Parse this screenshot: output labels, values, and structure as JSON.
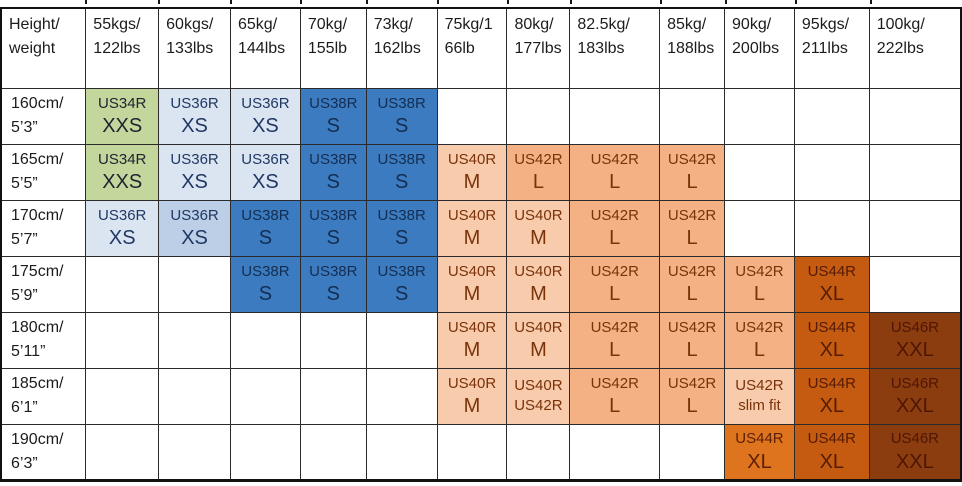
{
  "colors": {
    "grid": "#2b2b2b",
    "outer_border": "#111111",
    "fills": {
      "xxs": {
        "bg": "#c3d69b",
        "fg": "#1b2430"
      },
      "xs": {
        "bg": "#dbe5f1",
        "fg": "#1f3864"
      },
      "xs2": {
        "bg": "#bccfe7",
        "fg": "#1f3864"
      },
      "s": {
        "bg": "#3c7bbf",
        "fg": "#132e52"
      },
      "m": {
        "bg": "#f8cbad",
        "fg": "#7a3309"
      },
      "l": {
        "bg": "#f4b183",
        "fg": "#7a3309"
      },
      "xl_bright": {
        "bg": "#df741f",
        "fg": "#5c1e04"
      },
      "xl": {
        "bg": "#c55a11",
        "fg": "#551b04"
      },
      "xxl": {
        "bg": "#8b3d10",
        "fg": "#4e1602"
      }
    }
  },
  "table": {
    "corner": [
      "Height/",
      "weight"
    ],
    "weight_headers": [
      [
        "55kgs/",
        "122lbs"
      ],
      [
        "60kgs/",
        "133lbs"
      ],
      [
        "65kg/",
        "144lbs"
      ],
      [
        "70kg/",
        "155lb"
      ],
      [
        "73kg/",
        "162lbs"
      ],
      [
        "75kg/1",
        "66lb"
      ],
      [
        "80kg/",
        "177lbs"
      ],
      [
        "82.5kg/",
        "183lbs"
      ],
      [
        "85kg/",
        "188lbs"
      ],
      [
        "90kg/",
        "200lbs"
      ],
      [
        "95kgs/",
        "211lbs"
      ],
      [
        "100kg/",
        "222lbs"
      ]
    ],
    "rows": [
      {
        "height": [
          "160cm/",
          "5’3”"
        ],
        "cells": [
          {
            "line1": "US34R",
            "line2": "XXS",
            "fill": "xxs"
          },
          {
            "line1": "US36R",
            "line2": "XS",
            "fill": "xs"
          },
          {
            "line1": "US36R",
            "line2": "XS",
            "fill": "xs"
          },
          {
            "line1": "US38R",
            "line2": "S",
            "fill": "s"
          },
          {
            "line1": "US38R",
            "line2": "S",
            "fill": "s"
          },
          null,
          null,
          null,
          null,
          null,
          null,
          null
        ]
      },
      {
        "height": [
          "165cm/",
          "5’5”"
        ],
        "cells": [
          {
            "line1": "US34R",
            "line2": "XXS",
            "fill": "xxs"
          },
          {
            "line1": "US36R",
            "line2": "XS",
            "fill": "xs"
          },
          {
            "line1": "US36R",
            "line2": "XS",
            "fill": "xs"
          },
          {
            "line1": "US38R",
            "line2": "S",
            "fill": "s"
          },
          {
            "line1": "US38R",
            "line2": "S",
            "fill": "s"
          },
          {
            "line1": "US40R",
            "line2": "M",
            "fill": "m"
          },
          {
            "line1": "US42R",
            "line2": "L",
            "fill": "l"
          },
          {
            "line1": "US42R",
            "line2": "L",
            "fill": "l"
          },
          {
            "line1": "US42R",
            "line2": "L",
            "fill": "l"
          },
          null,
          null,
          null
        ]
      },
      {
        "height": [
          "170cm/",
          "5’7”"
        ],
        "cells": [
          {
            "line1": "US36R",
            "line2": "XS",
            "fill": "xs"
          },
          {
            "line1": "US36R",
            "line2": "XS",
            "fill": "xs2"
          },
          {
            "line1": "US38R",
            "line2": "S",
            "fill": "s"
          },
          {
            "line1": "US38R",
            "line2": "S",
            "fill": "s"
          },
          {
            "line1": "US38R",
            "line2": "S",
            "fill": "s"
          },
          {
            "line1": "US40R",
            "line2": "M",
            "fill": "m"
          },
          {
            "line1": "US40R",
            "line2": "M",
            "fill": "m"
          },
          {
            "line1": "US42R",
            "line2": "L",
            "fill": "l"
          },
          {
            "line1": "US42R",
            "line2": "L",
            "fill": "l"
          },
          null,
          null,
          null
        ]
      },
      {
        "height": [
          "175cm/",
          "5’9”"
        ],
        "cells": [
          null,
          null,
          {
            "line1": "US38R",
            "line2": "S",
            "fill": "s"
          },
          {
            "line1": "US38R",
            "line2": "S",
            "fill": "s"
          },
          {
            "line1": "US38R",
            "line2": "S",
            "fill": "s"
          },
          {
            "line1": "US40R",
            "line2": "M",
            "fill": "m"
          },
          {
            "line1": "US40R",
            "line2": "M",
            "fill": "m"
          },
          {
            "line1": "US42R",
            "line2": "L",
            "fill": "l"
          },
          {
            "line1": "US42R",
            "line2": "L",
            "fill": "l"
          },
          {
            "line1": "US42R",
            "line2": "L",
            "fill": "l"
          },
          {
            "line1": "US44R",
            "line2": "XL",
            "fill": "xl"
          },
          null
        ]
      },
      {
        "height": [
          "180cm/",
          "5’11”"
        ],
        "cells": [
          null,
          null,
          null,
          null,
          null,
          {
            "line1": "US40R",
            "line2": "M",
            "fill": "m"
          },
          {
            "line1": "US40R",
            "line2": "M",
            "fill": "m"
          },
          {
            "line1": "US42R",
            "line2": "L",
            "fill": "l"
          },
          {
            "line1": "US42R",
            "line2": "L",
            "fill": "l"
          },
          {
            "line1": "US42R",
            "line2": "L",
            "fill": "l"
          },
          {
            "line1": "US44R",
            "line2": "XL",
            "fill": "xl"
          },
          {
            "line1": "US46R",
            "line2": "XXL",
            "fill": "xxl"
          }
        ]
      },
      {
        "height": [
          "185cm/",
          "6’1”"
        ],
        "cells": [
          null,
          null,
          null,
          null,
          null,
          {
            "line1": "US40R",
            "line2": "M",
            "fill": "m"
          },
          {
            "line1": "US40R",
            "line2": "US42R",
            "fill": "m",
            "small2": true
          },
          {
            "line1": "US42R",
            "line2": "L",
            "fill": "l"
          },
          {
            "line1": "US42R",
            "line2": "L",
            "fill": "l"
          },
          {
            "line1": "US42R",
            "line2": "slim fit",
            "fill": "m",
            "small2": true
          },
          {
            "line1": "US44R",
            "line2": "XL",
            "fill": "xl"
          },
          {
            "line1": "US46R",
            "line2": "XXL",
            "fill": "xxl"
          }
        ]
      },
      {
        "height": [
          "190cm/",
          "6’3”"
        ],
        "cells": [
          null,
          null,
          null,
          null,
          null,
          null,
          null,
          null,
          null,
          {
            "line1": "US44R",
            "line2": "XL",
            "fill": "xl_bright"
          },
          {
            "line1": "US44R",
            "line2": "XL",
            "fill": "xl"
          },
          {
            "line1": "US46R",
            "line2": "XXL",
            "fill": "xxl"
          }
        ]
      }
    ]
  },
  "chart_data": {
    "type": "table",
    "columns": [
      "Height/weight",
      "55kgs/122lbs",
      "60kgs/133lbs",
      "65kg/144lbs",
      "70kg/155lb",
      "73kg/162lbs",
      "75kg/166lb",
      "80kg/177lbs",
      "82.5kg/183lbs",
      "85kg/188lbs",
      "90kg/200lbs",
      "95kgs/211lbs",
      "100kg/222lbs"
    ],
    "rows": [
      [
        "160cm/5’3”",
        "US34R XXS",
        "US36R XS",
        "US36R XS",
        "US38R S",
        "US38R S",
        "",
        "",
        "",
        "",
        "",
        "",
        ""
      ],
      [
        "165cm/5’5”",
        "US34R XXS",
        "US36R XS",
        "US36R XS",
        "US38R S",
        "US38R S",
        "US40R M",
        "US42R L",
        "US42R L",
        "US42R L",
        "",
        "",
        ""
      ],
      [
        "170cm/5’7”",
        "US36R XS",
        "US36R XS",
        "US38R S",
        "US38R S",
        "US38R S",
        "US40R M",
        "US40R M",
        "US42R L",
        "US42R L",
        "",
        "",
        ""
      ],
      [
        "175cm/5’9”",
        "",
        "",
        "US38R S",
        "US38R S",
        "US38R S",
        "US40R M",
        "US40R M",
        "US42R L",
        "US42R L",
        "US42R L",
        "US44R XL",
        ""
      ],
      [
        "180cm/5’11”",
        "",
        "",
        "",
        "",
        "",
        "US40R M",
        "US40R M",
        "US42R L",
        "US42R L",
        "US42R L",
        "US44R XL",
        "US46R XXL"
      ],
      [
        "185cm/6’1”",
        "",
        "",
        "",
        "",
        "",
        "US40R M",
        "US40R US42R",
        "US42R L",
        "US42R L",
        "US42R slim fit",
        "US44R XL",
        "US46R XXL"
      ],
      [
        "190cm/6’3”",
        "",
        "",
        "",
        "",
        "",
        "",
        "",
        "",
        "",
        "US44R XL",
        "US44R XL",
        "US46R XXL"
      ]
    ],
    "legend_mapping": {
      "xxs": "US34R XXS (green)",
      "xs": "US36R XS (light blue)",
      "s": "US38R S (blue)",
      "m": "US40R M (light orange)",
      "l": "US42R L (orange)",
      "xl": "US44R XL (dark orange)",
      "xxl": "US46R XXL (brown)"
    }
  }
}
